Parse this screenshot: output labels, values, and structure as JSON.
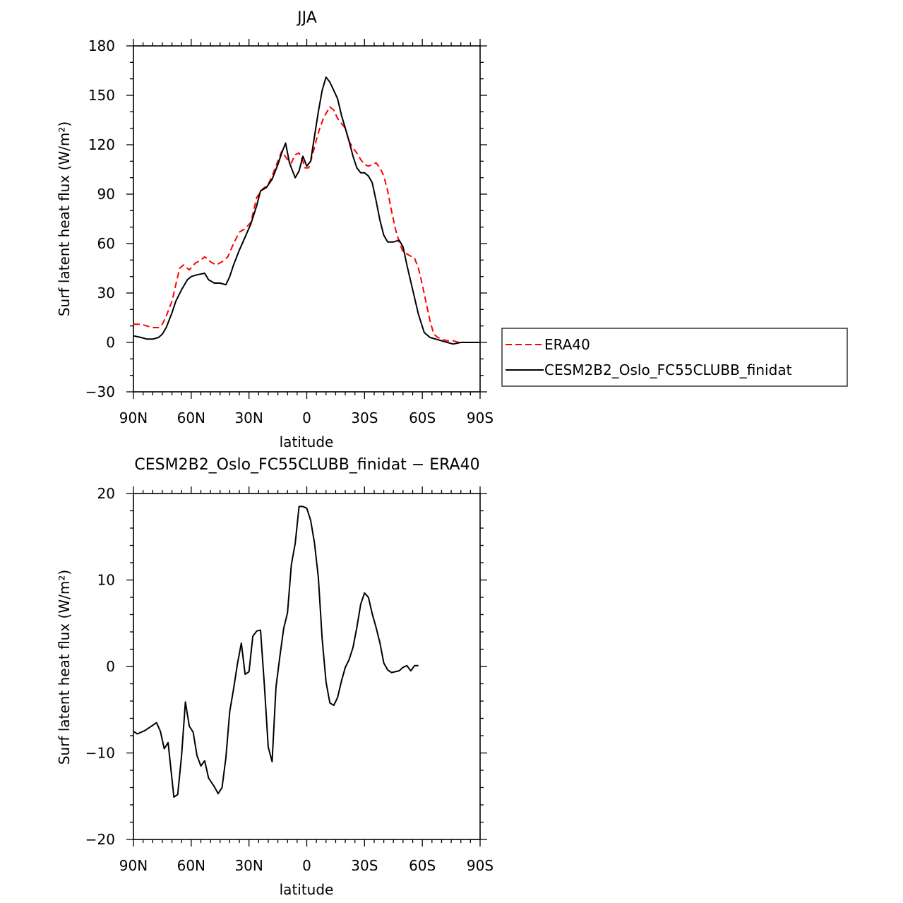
{
  "chart_data": [
    {
      "type": "line",
      "title": "JJA",
      "xlabel": "latitude",
      "ylabel": "Surf latent heat flux (W/m²)",
      "xlim": [
        -90,
        90
      ],
      "ylim": [
        -30,
        180
      ],
      "xticks": [
        -90,
        -60,
        -30,
        0,
        30,
        60,
        90
      ],
      "xtick_labels": [
        "90N",
        "60N",
        "30N",
        "0",
        "30S",
        "60S",
        "90S"
      ],
      "yticks": [
        -30,
        0,
        30,
        60,
        90,
        120,
        150,
        180
      ],
      "ytick_labels": [
        "−30",
        "0",
        "30",
        "60",
        "90",
        "120",
        "150",
        "180"
      ],
      "grid": false,
      "legend_position": "right",
      "series": [
        {
          "name": "ERA40",
          "color": "#ff0000",
          "dash": "dashed",
          "points": [
            [
              -90,
              11
            ],
            [
              -86,
              11
            ],
            [
              -83,
              10
            ],
            [
              -80,
              9
            ],
            [
              -77,
              9
            ],
            [
              -75,
              11
            ],
            [
              -73,
              16
            ],
            [
              -70,
              25
            ],
            [
              -68,
              35
            ],
            [
              -66,
              45
            ],
            [
              -64,
              47
            ],
            [
              -61,
              44
            ],
            [
              -58,
              48
            ],
            [
              -55,
              50
            ],
            [
              -53,
              52
            ],
            [
              -50,
              49
            ],
            [
              -47,
              47
            ],
            [
              -44,
              49
            ],
            [
              -41,
              52
            ],
            [
              -38,
              60
            ],
            [
              -35,
              67
            ],
            [
              -32,
              69
            ],
            [
              -29,
              73
            ],
            [
              -26,
              88
            ],
            [
              -23,
              93
            ],
            [
              -20,
              96
            ],
            [
              -18,
              101
            ],
            [
              -15,
              110
            ],
            [
              -13,
              116
            ],
            [
              -10,
              111
            ],
            [
              -8,
              109
            ],
            [
              -6,
              114
            ],
            [
              -4,
              115
            ],
            [
              -2,
              110
            ],
            [
              -1,
              106
            ],
            [
              1,
              106
            ],
            [
              3,
              114
            ],
            [
              5,
              123
            ],
            [
              7,
              131
            ],
            [
              9,
              137
            ],
            [
              11,
              141
            ],
            [
              12,
              143
            ],
            [
              14,
              141
            ],
            [
              16,
              136
            ],
            [
              18,
              133
            ],
            [
              20,
              130
            ],
            [
              22,
              122
            ],
            [
              24,
              118
            ],
            [
              26,
              115
            ],
            [
              28,
              111
            ],
            [
              30,
              108
            ],
            [
              32,
              107
            ],
            [
              34,
              108
            ],
            [
              36,
              109
            ],
            [
              38,
              106
            ],
            [
              40,
              101
            ],
            [
              42,
              92
            ],
            [
              44,
              80
            ],
            [
              46,
              69
            ],
            [
              48,
              61
            ],
            [
              50,
              55
            ],
            [
              53,
              53
            ],
            [
              56,
              51
            ],
            [
              58,
              45
            ],
            [
              60,
              35
            ],
            [
              62,
              24
            ],
            [
              64,
              13
            ],
            [
              66,
              5
            ],
            [
              68,
              3
            ],
            [
              70,
              2
            ],
            [
              73,
              1
            ],
            [
              76,
              1
            ],
            [
              79,
              0
            ],
            [
              82,
              0
            ],
            [
              85,
              0
            ],
            [
              90,
              0
            ]
          ]
        },
        {
          "name": "CESM2B2_Oslo_FC55CLUBB_finidat",
          "color": "#000000",
          "dash": "solid",
          "points": [
            [
              -90,
              4
            ],
            [
              -86,
              3
            ],
            [
              -83,
              2
            ],
            [
              -80,
              2
            ],
            [
              -77,
              3
            ],
            [
              -75,
              5
            ],
            [
              -73,
              9
            ],
            [
              -70,
              18
            ],
            [
              -68,
              25
            ],
            [
              -65,
              32
            ],
            [
              -62,
              38
            ],
            [
              -60,
              40
            ],
            [
              -57,
              41
            ],
            [
              -53,
              42
            ],
            [
              -51,
              38
            ],
            [
              -48,
              36
            ],
            [
              -45,
              36
            ],
            [
              -42,
              35
            ],
            [
              -40,
              40
            ],
            [
              -38,
              47
            ],
            [
              -35,
              56
            ],
            [
              -32,
              64
            ],
            [
              -29,
              72
            ],
            [
              -26,
              83
            ],
            [
              -24,
              92
            ],
            [
              -21,
              94
            ],
            [
              -18,
              99
            ],
            [
              -15,
              108
            ],
            [
              -13,
              115
            ],
            [
              -11,
              121
            ],
            [
              -9,
              109
            ],
            [
              -6,
              100
            ],
            [
              -4,
              104
            ],
            [
              -2,
              113
            ],
            [
              0,
              107
            ],
            [
              2,
              110
            ],
            [
              4,
              125
            ],
            [
              6,
              140
            ],
            [
              8,
              153
            ],
            [
              10,
              161
            ],
            [
              12,
              158
            ],
            [
              14,
              153
            ],
            [
              16,
              148
            ],
            [
              18,
              138
            ],
            [
              20,
              130
            ],
            [
              22,
              122
            ],
            [
              24,
              113
            ],
            [
              26,
              106
            ],
            [
              28,
              103
            ],
            [
              30,
              103
            ],
            [
              32,
              101
            ],
            [
              34,
              97
            ],
            [
              36,
              86
            ],
            [
              38,
              74
            ],
            [
              40,
              65
            ],
            [
              42,
              61
            ],
            [
              45,
              61
            ],
            [
              48,
              62
            ],
            [
              50,
              58
            ],
            [
              52,
              47
            ],
            [
              55,
              32
            ],
            [
              58,
              17
            ],
            [
              61,
              6
            ],
            [
              64,
              3
            ],
            [
              67,
              2
            ],
            [
              70,
              1
            ],
            [
              73,
              0
            ],
            [
              76,
              -1
            ],
            [
              80,
              0
            ],
            [
              84,
              0
            ],
            [
              90,
              0
            ]
          ]
        }
      ]
    },
    {
      "type": "line",
      "title": "CESM2B2_Oslo_FC55CLUBB_finidat − ERA40",
      "xlabel": "latitude",
      "ylabel": "Surf latent heat flux (W/m²)",
      "xlim": [
        -90,
        90
      ],
      "ylim": [
        -20,
        20
      ],
      "xticks": [
        -90,
        -60,
        -30,
        0,
        30,
        60,
        90
      ],
      "xtick_labels": [
        "90N",
        "60N",
        "30N",
        "0",
        "30S",
        "60S",
        "90S"
      ],
      "yticks": [
        -20,
        -10,
        0,
        10,
        20
      ],
      "ytick_labels": [
        "−20",
        "−10",
        "0",
        "10",
        "20"
      ],
      "grid": false,
      "series": [
        {
          "color": "#000000",
          "dash": "solid",
          "points": [
            [
              -90,
              -7.5
            ],
            [
              -88,
              -7.8
            ],
            [
              -84,
              -7.4
            ],
            [
              -80,
              -6.8
            ],
            [
              -78,
              -6.5
            ],
            [
              -76,
              -7.5
            ],
            [
              -74,
              -9.5
            ],
            [
              -72,
              -8.8
            ],
            [
              -69,
              -15.1
            ],
            [
              -67,
              -14.8
            ],
            [
              -65,
              -10.3
            ],
            [
              -63,
              -4.1
            ],
            [
              -61,
              -6.9
            ],
            [
              -59,
              -7.6
            ],
            [
              -57,
              -10.3
            ],
            [
              -55,
              -11.5
            ],
            [
              -53,
              -10.9
            ],
            [
              -51,
              -12.9
            ],
            [
              -48,
              -13.9
            ],
            [
              -46,
              -14.7
            ],
            [
              -44,
              -14.0
            ],
            [
              -42,
              -10.6
            ],
            [
              -40,
              -5.2
            ],
            [
              -38,
              -2.6
            ],
            [
              -36,
              0.3
            ],
            [
              -34,
              2.7
            ],
            [
              -32,
              -0.9
            ],
            [
              -30,
              -0.6
            ],
            [
              -28,
              3.5
            ],
            [
              -26,
              4.1
            ],
            [
              -24,
              4.2
            ],
            [
              -22,
              -2.2
            ],
            [
              -20,
              -9.3
            ],
            [
              -18,
              -11.0
            ],
            [
              -16,
              -2.4
            ],
            [
              -14,
              1.1
            ],
            [
              -12,
              4.4
            ],
            [
              -10,
              6.2
            ],
            [
              -8,
              11.8
            ],
            [
              -6,
              14.2
            ],
            [
              -4,
              18.5
            ],
            [
              -2,
              18.5
            ],
            [
              0,
              18.3
            ],
            [
              2,
              16.9
            ],
            [
              4,
              14.3
            ],
            [
              6,
              10.3
            ],
            [
              8,
              3.2
            ],
            [
              10,
              -1.8
            ],
            [
              12,
              -4.2
            ],
            [
              14,
              -4.5
            ],
            [
              16,
              -3.6
            ],
            [
              18,
              -1.7
            ],
            [
              20,
              -0.1
            ],
            [
              22,
              0.8
            ],
            [
              24,
              2.2
            ],
            [
              26,
              4.5
            ],
            [
              28,
              7.2
            ],
            [
              30,
              8.5
            ],
            [
              32,
              8.0
            ],
            [
              34,
              6.1
            ],
            [
              36,
              4.5
            ],
            [
              38,
              2.7
            ],
            [
              40,
              0.4
            ],
            [
              42,
              -0.4
            ],
            [
              44,
              -0.7
            ],
            [
              48,
              -0.5
            ],
            [
              50,
              -0.1
            ],
            [
              52,
              0.1
            ],
            [
              54,
              -0.5
            ],
            [
              56,
              0.1
            ],
            [
              58,
              0.1
            ]
          ]
        }
      ]
    }
  ]
}
